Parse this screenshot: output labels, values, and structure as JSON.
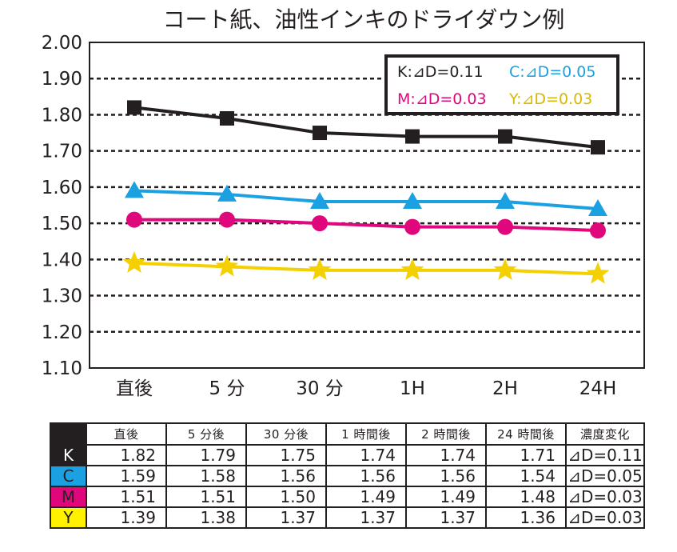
{
  "chart_data": {
    "type": "line",
    "title": "コート紙、油性インキのドライダウン例",
    "categories": [
      "直後",
      "5 分",
      "30 分",
      "1H",
      "2H",
      "24H"
    ],
    "ylim": [
      1.1,
      2.0
    ],
    "yticks": [
      "1.10",
      "1.20",
      "1.30",
      "1.40",
      "1.50",
      "1.60",
      "1.70",
      "1.80",
      "1.90",
      "2.00"
    ],
    "grid": true,
    "legend_position": "top-right",
    "series": [
      {
        "name": "K",
        "values": [
          1.82,
          1.79,
          1.75,
          1.74,
          1.74,
          1.71
        ],
        "color": "#231f20",
        "marker": "square"
      },
      {
        "name": "C",
        "values": [
          1.59,
          1.58,
          1.56,
          1.56,
          1.56,
          1.54
        ],
        "color": "#1ba1e2",
        "marker": "triangle"
      },
      {
        "name": "M",
        "values": [
          1.51,
          1.51,
          1.5,
          1.49,
          1.49,
          1.48
        ],
        "color": "#e0077d",
        "marker": "circle"
      },
      {
        "name": "Y",
        "values": [
          1.39,
          1.38,
          1.37,
          1.37,
          1.37,
          1.36
        ],
        "color": "#f5d000",
        "marker": "star"
      }
    ],
    "legend": [
      {
        "label": "K:⊿D=0.11",
        "color": "#231f20"
      },
      {
        "label": "C:⊿D=0.05",
        "color": "#1ba1e2"
      },
      {
        "label": "M:⊿D=0.03",
        "color": "#e0077d"
      },
      {
        "label": "Y:⊿D=0.03",
        "color": "#d9b800"
      }
    ]
  },
  "table": {
    "headers": [
      "直後",
      "5 分後",
      "30 分後",
      "1 時間後",
      "2 時間後",
      "24 時間後",
      "濃度変化"
    ],
    "rows": [
      {
        "label": "K",
        "values": [
          "1.82",
          "1.79",
          "1.75",
          "1.74",
          "1.74",
          "1.71"
        ],
        "delta": "⊿D=0.11",
        "color": "#231f20",
        "text_color": "#ffffff"
      },
      {
        "label": "C",
        "values": [
          "1.59",
          "1.58",
          "1.56",
          "1.56",
          "1.56",
          "1.54"
        ],
        "delta": "⊿D=0.05",
        "color": "#1ba1e2",
        "text_color": "#231f20"
      },
      {
        "label": "M",
        "values": [
          "1.51",
          "1.51",
          "1.50",
          "1.49",
          "1.49",
          "1.48"
        ],
        "delta": "⊿D=0.03",
        "color": "#e0077d",
        "text_color": "#231f20"
      },
      {
        "label": "Y",
        "values": [
          "1.39",
          "1.38",
          "1.37",
          "1.37",
          "1.37",
          "1.36"
        ],
        "delta": "⊿D=0.03",
        "color": "#fff100",
        "text_color": "#231f20"
      }
    ]
  }
}
